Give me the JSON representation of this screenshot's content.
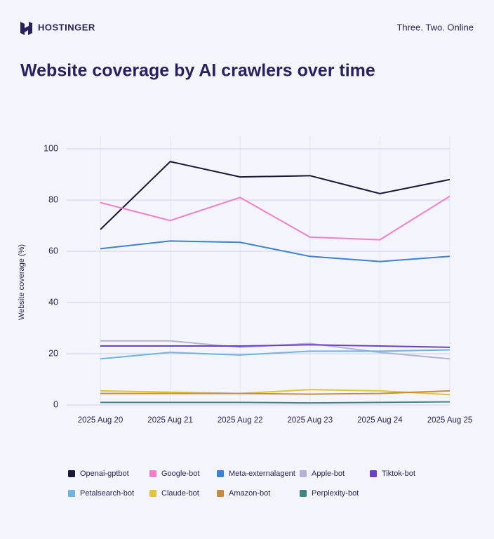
{
  "header": {
    "brand": "HOSTINGER",
    "tagline": "Three. Two. Online"
  },
  "chart_data": {
    "type": "line",
    "title": "Website coverage by AI crawlers over time",
    "y_label": "Website coverage (%)",
    "categories": [
      "2025 Aug 20",
      "2025 Aug 21",
      "2025 Aug 22",
      "2025 Aug 23",
      "2025 Aug 24",
      "2025 Aug 25"
    ],
    "ylim": [
      0,
      100
    ],
    "yticks": [
      0,
      20,
      40,
      60,
      80,
      100
    ],
    "grid": true,
    "series": [
      {
        "name": "Openai-gptbot",
        "color": "#1c1638",
        "values": [
          68.5,
          95,
          89,
          89.5,
          82.5,
          88
        ]
      },
      {
        "name": "Google-bot",
        "color": "#f47fc8",
        "values": [
          79,
          72,
          81,
          65.5,
          64.5,
          81.5
        ]
      },
      {
        "name": "Meta-externalagent",
        "color": "#3b82d9",
        "values": [
          61,
          64,
          63.5,
          58,
          56,
          58
        ]
      },
      {
        "name": "Apple-bot",
        "color": "#b3b1d8",
        "values": [
          25,
          25,
          22.5,
          24,
          20.5,
          18
        ]
      },
      {
        "name": "Tiktok-bot",
        "color": "#6a3fd0",
        "values": [
          23,
          23,
          23,
          23.5,
          23,
          22.5
        ]
      },
      {
        "name": "Petalsearch-bot",
        "color": "#6fb3e8",
        "values": [
          18,
          20.5,
          19.5,
          21,
          21,
          21.5
        ]
      },
      {
        "name": "Claude-bot",
        "color": "#e0c43a",
        "values": [
          5.5,
          5,
          4.5,
          6,
          5.5,
          4
        ]
      },
      {
        "name": "Amazon-bot",
        "color": "#c98a40",
        "values": [
          4.5,
          4.5,
          4.5,
          4.2,
          4.5,
          5.5
        ]
      },
      {
        "name": "Perplexity-bot",
        "color": "#3f8680",
        "values": [
          1,
          1,
          1,
          0.8,
          1,
          1.2
        ]
      }
    ]
  }
}
